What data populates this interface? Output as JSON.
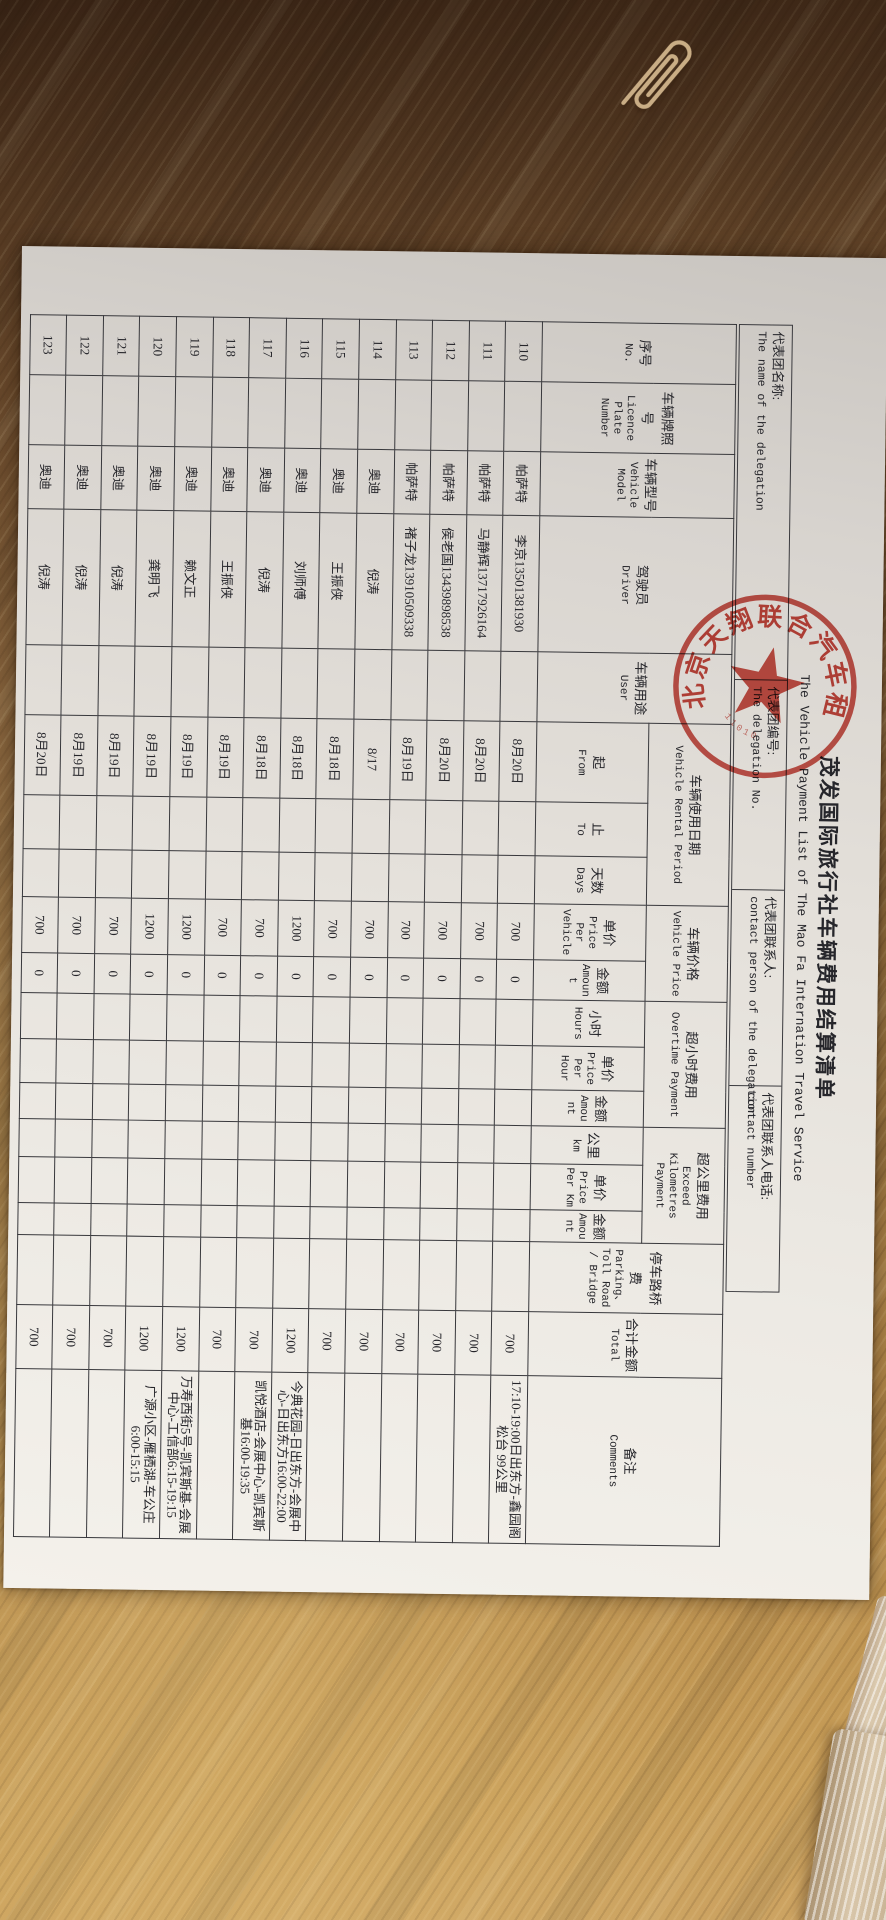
{
  "photo": {
    "scene": "paper document lying rotated 90 degrees clockwise on a wooden desk",
    "wood_color_dark": "#4e3420",
    "wood_color_light": "#cda463",
    "objects": [
      {
        "name": "paperclip",
        "color": "#c9ad85"
      },
      {
        "name": "wrapped-item-small"
      },
      {
        "name": "wrapped-item-large"
      }
    ]
  },
  "document": {
    "title_cn": "茂发国际旅行社车辆费用结算清单",
    "title_en": "The Vehicle Payment List of The Mao Fa Internation Travel Service",
    "info_fields": [
      {
        "cn": "代表团名称:",
        "en": "The name of the delegation"
      },
      {
        "cn": "代表团编号:",
        "en": "The delegation No."
      },
      {
        "cn": "代表团联系人:",
        "en": "contact person of the delegation"
      },
      {
        "cn": "代表团联系人电话:",
        "en": "contact number"
      }
    ],
    "stamp": {
      "arc_text": "北京天翔联合汽车租赁",
      "serial_partial": "11010",
      "shape": "circle with five-point star",
      "color": "#c2342a"
    },
    "columns": [
      {
        "key": "no",
        "cn": "序号",
        "en": "No."
      },
      {
        "key": "plate",
        "cn": "车辆牌照号",
        "en": "Licence Plate Number"
      },
      {
        "key": "model",
        "cn": "车辆型号",
        "en": "Vehicle Model"
      },
      {
        "key": "driver",
        "cn": "驾驶员",
        "en": "Driver"
      },
      {
        "key": "user",
        "cn": "车辆用途",
        "en": "User"
      },
      {
        "key": "period",
        "cn": "车辆使用日期",
        "en": "Vehicle Rental Period",
        "children": [
          {
            "key": "from",
            "cn": "起",
            "en": "From"
          },
          {
            "key": "to",
            "cn": "止",
            "en": "To"
          },
          {
            "key": "days",
            "cn": "天数",
            "en": "Days"
          }
        ]
      },
      {
        "key": "vehicle_price",
        "cn": "车辆价格",
        "en": "Vehicle Price",
        "children": [
          {
            "key": "price",
            "cn": "单价",
            "en": "Price Per Vehicle"
          },
          {
            "key": "amount",
            "cn": "金额",
            "en": "Amount"
          }
        ]
      },
      {
        "key": "overtime",
        "cn": "超小时费用",
        "en": "Overtime Payment",
        "children": [
          {
            "key": "ot_hours",
            "cn": "小时",
            "en": "Hours"
          },
          {
            "key": "ot_price",
            "cn": "单价",
            "en": "Price Per Hour"
          },
          {
            "key": "ot_amount",
            "cn": "金额",
            "en": "Amount"
          }
        ]
      },
      {
        "key": "exceed_km",
        "cn": "超公里费用",
        "en": "Exceed Kilometres Payment",
        "children": [
          {
            "key": "km",
            "cn": "公里",
            "en": "km"
          },
          {
            "key": "km_price",
            "cn": "单价",
            "en": "Price Per Km"
          },
          {
            "key": "km_amount",
            "cn": "金额",
            "en": "Amount"
          }
        ]
      },
      {
        "key": "parking",
        "cn": "停车路桥费",
        "en": "Parking、Toll Road / Bridge"
      },
      {
        "key": "total",
        "cn": "合计金额",
        "en": "Total"
      },
      {
        "key": "comments",
        "cn": "备注",
        "en": "Comments"
      }
    ],
    "rows": [
      {
        "no": "110",
        "plate": "",
        "model": "帕萨特",
        "driver": "李京13501381930",
        "user": "",
        "from": "8月20日",
        "to": "",
        "days": "",
        "price": "700",
        "amount": "0",
        "ot_hours": "",
        "ot_price": "",
        "ot_amount": "",
        "km": "",
        "km_price": "",
        "km_amount": "",
        "parking": "",
        "total": "700",
        "comments": "17:10-19:00日出东方-鑫园阁松台 99公里"
      },
      {
        "no": "111",
        "plate": "",
        "model": "帕萨特",
        "driver": "马静辉13717926164",
        "user": "",
        "from": "8月20日",
        "to": "",
        "days": "",
        "price": "700",
        "amount": "0",
        "ot_hours": "",
        "ot_price": "",
        "ot_amount": "",
        "km": "",
        "km_price": "",
        "km_amount": "",
        "parking": "",
        "total": "700",
        "comments": ""
      },
      {
        "no": "112",
        "plate": "",
        "model": "帕萨特",
        "driver": "侯老国13439898538",
        "user": "",
        "from": "8月20日",
        "to": "",
        "days": "",
        "price": "700",
        "amount": "0",
        "ot_hours": "",
        "ot_price": "",
        "ot_amount": "",
        "km": "",
        "km_price": "",
        "km_amount": "",
        "parking": "",
        "total": "700",
        "comments": ""
      },
      {
        "no": "113",
        "plate": "",
        "model": "帕萨特",
        "driver": "褚子龙13910509338",
        "user": "",
        "from": "8月19日",
        "to": "",
        "days": "",
        "price": "700",
        "amount": "0",
        "ot_hours": "",
        "ot_price": "",
        "ot_amount": "",
        "km": "",
        "km_price": "",
        "km_amount": "",
        "parking": "",
        "total": "700",
        "comments": ""
      },
      {
        "no": "114",
        "plate": "",
        "model": "奥迪",
        "driver": "倪涛",
        "user": "",
        "from": "8/17",
        "to": "",
        "days": "",
        "price": "700",
        "amount": "0",
        "ot_hours": "",
        "ot_price": "",
        "ot_amount": "",
        "km": "",
        "km_price": "",
        "km_amount": "",
        "parking": "",
        "total": "700",
        "comments": ""
      },
      {
        "no": "115",
        "plate": "",
        "model": "奥迪",
        "driver": "王振侠",
        "user": "",
        "from": "8月18日",
        "to": "",
        "days": "",
        "price": "700",
        "amount": "0",
        "ot_hours": "",
        "ot_price": "",
        "ot_amount": "",
        "km": "",
        "km_price": "",
        "km_amount": "",
        "parking": "",
        "total": "700",
        "comments": ""
      },
      {
        "no": "116",
        "plate": "",
        "model": "奥迪",
        "driver": "刘师傅",
        "user": "",
        "from": "8月18日",
        "to": "",
        "days": "",
        "price": "1200",
        "amount": "0",
        "ot_hours": "",
        "ot_price": "",
        "ot_amount": "",
        "km": "",
        "km_price": "",
        "km_amount": "",
        "parking": "",
        "total": "1200",
        "comments": "今典花园-日出东方-会展中心-日出东方16:00-22:00"
      },
      {
        "no": "117",
        "plate": "",
        "model": "奥迪",
        "driver": "倪涛",
        "user": "",
        "from": "8月18日",
        "to": "",
        "days": "",
        "price": "700",
        "amount": "0",
        "ot_hours": "",
        "ot_price": "",
        "ot_amount": "",
        "km": "",
        "km_price": "",
        "km_amount": "",
        "parking": "",
        "total": "700",
        "comments": "凯悦酒店-会展中心-凯宾斯基16:00-19:35"
      },
      {
        "no": "118",
        "plate": "",
        "model": "奥迪",
        "driver": "王振侠",
        "user": "",
        "from": "8月19日",
        "to": "",
        "days": "",
        "price": "700",
        "amount": "0",
        "ot_hours": "",
        "ot_price": "",
        "ot_amount": "",
        "km": "",
        "km_price": "",
        "km_amount": "",
        "parking": "",
        "total": "700",
        "comments": ""
      },
      {
        "no": "119",
        "plate": "",
        "model": "奥迪",
        "driver": "赖文正",
        "user": "",
        "from": "8月19日",
        "to": "",
        "days": "",
        "price": "1200",
        "amount": "0",
        "ot_hours": "",
        "ot_price": "",
        "ot_amount": "",
        "km": "",
        "km_price": "",
        "km_amount": "",
        "parking": "",
        "total": "1200",
        "comments": "万寿西街5号-凯宾斯基-会展中心-工信部6:15-19:15"
      },
      {
        "no": "120",
        "plate": "",
        "model": "奥迪",
        "driver": "龚明飞",
        "user": "",
        "from": "8月19日",
        "to": "",
        "days": "",
        "price": "1200",
        "amount": "0",
        "ot_hours": "",
        "ot_price": "",
        "ot_amount": "",
        "km": "",
        "km_price": "",
        "km_amount": "",
        "parking": "",
        "total": "1200",
        "comments": "广源小区-雁栖湖-车公庄6:00-15:15"
      },
      {
        "no": "121",
        "plate": "",
        "model": "奥迪",
        "driver": "倪涛",
        "user": "",
        "from": "8月19日",
        "to": "",
        "days": "",
        "price": "700",
        "amount": "0",
        "ot_hours": "",
        "ot_price": "",
        "ot_amount": "",
        "km": "",
        "km_price": "",
        "km_amount": "",
        "parking": "",
        "total": "700",
        "comments": ""
      },
      {
        "no": "122",
        "plate": "",
        "model": "奥迪",
        "driver": "倪涛",
        "user": "",
        "from": "8月19日",
        "to": "",
        "days": "",
        "price": "700",
        "amount": "0",
        "ot_hours": "",
        "ot_price": "",
        "ot_amount": "",
        "km": "",
        "km_price": "",
        "km_amount": "",
        "parking": "",
        "total": "700",
        "comments": ""
      },
      {
        "no": "123",
        "plate": "",
        "model": "奥迪",
        "driver": "倪涛",
        "user": "",
        "from": "8月20日",
        "to": "",
        "days": "",
        "price": "700",
        "amount": "0",
        "ot_hours": "",
        "ot_price": "",
        "ot_amount": "",
        "km": "",
        "km_price": "",
        "km_amount": "",
        "parking": "",
        "total": "700",
        "comments": ""
      }
    ]
  }
}
